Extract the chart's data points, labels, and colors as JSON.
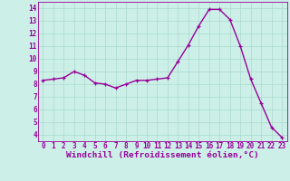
{
  "x": [
    0,
    1,
    2,
    3,
    4,
    5,
    6,
    7,
    8,
    9,
    10,
    11,
    12,
    13,
    14,
    15,
    16,
    17,
    18,
    19,
    20,
    21,
    22,
    23
  ],
  "y": [
    8.3,
    8.4,
    8.5,
    9.0,
    8.7,
    8.1,
    8.0,
    7.7,
    8.0,
    8.3,
    8.3,
    8.4,
    8.5,
    9.8,
    11.1,
    12.6,
    13.9,
    13.9,
    13.1,
    11.0,
    8.4,
    6.5,
    4.6,
    3.8
  ],
  "line_color": "#990099",
  "marker": "+",
  "marker_size": 3,
  "line_width": 1.0,
  "background_color": "#ccf0e8",
  "grid_color": "#aad8cc",
  "xlabel": "Windchill (Refroidissement éolien,°C)",
  "tick_color": "#990099",
  "xlim": [
    -0.5,
    23.5
  ],
  "ylim": [
    3.5,
    14.5
  ],
  "yticks": [
    4,
    5,
    6,
    7,
    8,
    9,
    10,
    11,
    12,
    13,
    14
  ],
  "xticks": [
    0,
    1,
    2,
    3,
    4,
    5,
    6,
    7,
    8,
    9,
    10,
    11,
    12,
    13,
    14,
    15,
    16,
    17,
    18,
    19,
    20,
    21,
    22,
    23
  ],
  "xtick_labels": [
    "0",
    "1",
    "2",
    "3",
    "4",
    "5",
    "6",
    "7",
    "8",
    "9",
    "10",
    "11",
    "12",
    "13",
    "14",
    "15",
    "16",
    "17",
    "18",
    "19",
    "20",
    "21",
    "22",
    "23"
  ],
  "ytick_labels": [
    "4",
    "5",
    "6",
    "7",
    "8",
    "9",
    "10",
    "11",
    "12",
    "13",
    "14"
  ],
  "spine_color": "#990099",
  "tick_font_size": 5.5,
  "xlabel_font_size": 6.8
}
